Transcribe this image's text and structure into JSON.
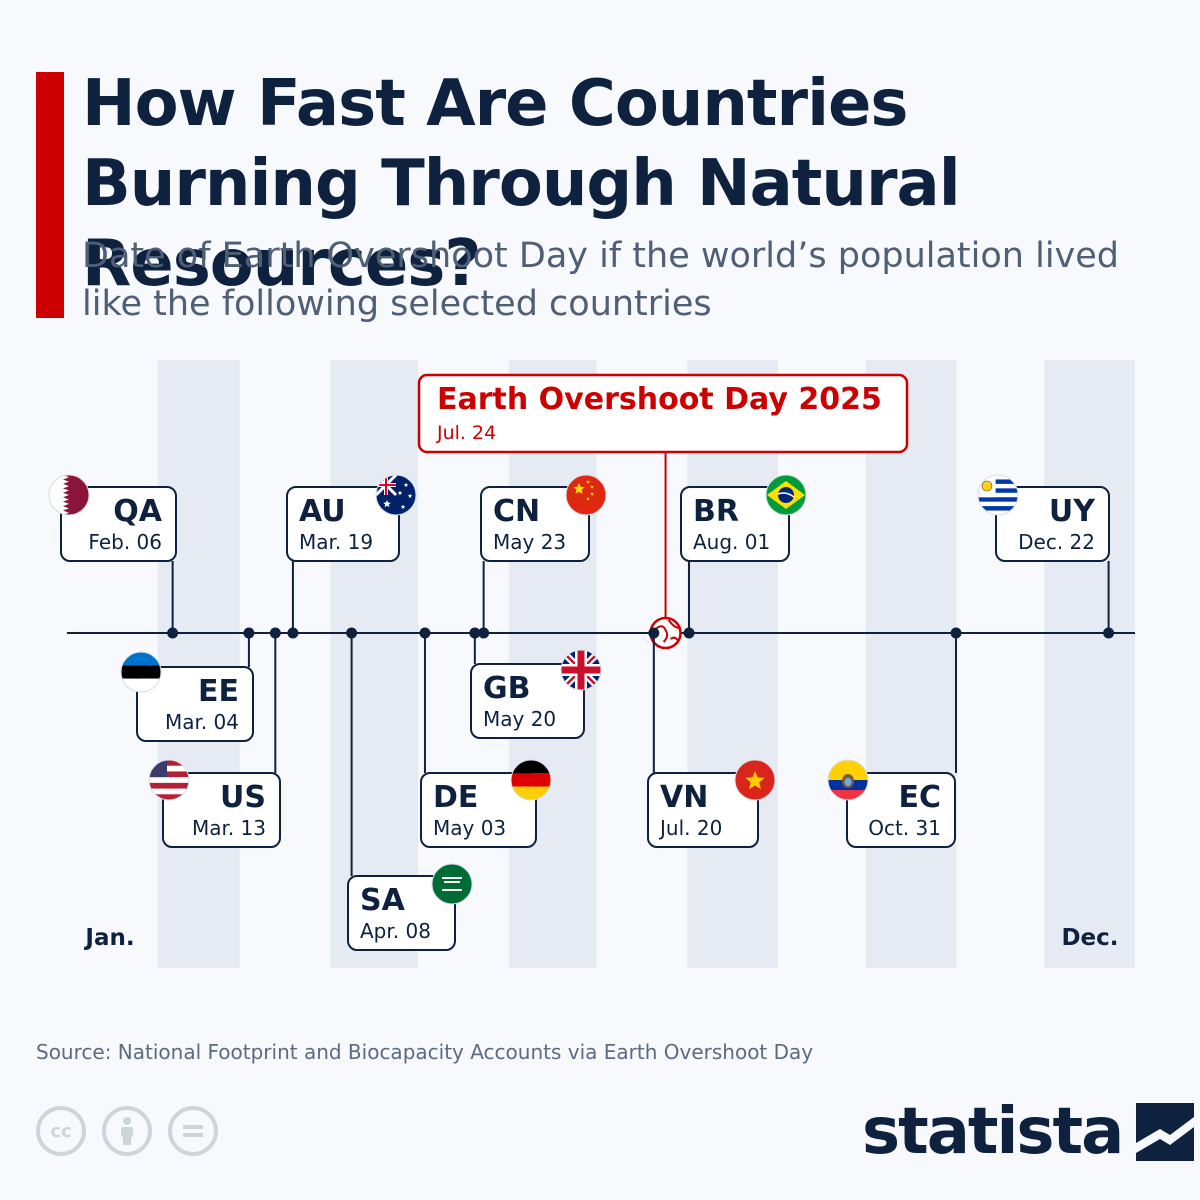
{
  "header": {
    "title": "How Fast Are Countries Burning Through Natural Resources?",
    "subtitle": "Date of Earth Overshoot Day if the world’s population lived like the following selected countries"
  },
  "chart_data": {
    "type": "timeline",
    "axis": {
      "start_label": "Jan.",
      "end_label": "Dec.",
      "start": "01-01",
      "end": "12-31",
      "alternating_month_bands": true
    },
    "highlight": {
      "label": "Earth Overshoot Day 2025",
      "date_label": "Jul. 24",
      "date": "07-24",
      "color": "#cc0000"
    },
    "points": [
      {
        "code": "QA",
        "date_label": "Feb. 06",
        "date": "02-06",
        "flag": "qatar-flag",
        "side": "above"
      },
      {
        "code": "EE",
        "date_label": "Mar. 04",
        "date": "03-04",
        "flag": "estonia-flag",
        "side": "below"
      },
      {
        "code": "US",
        "date_label": "Mar. 13",
        "date": "03-13",
        "flag": "usa-flag",
        "side": "below"
      },
      {
        "code": "AU",
        "date_label": "Mar. 19",
        "date": "03-19",
        "flag": "australia-flag",
        "side": "above"
      },
      {
        "code": "SA",
        "date_label": "Apr. 08",
        "date": "04-08",
        "flag": "saudi-arabia-flag",
        "side": "below"
      },
      {
        "code": "DE",
        "date_label": "May 03",
        "date": "05-03",
        "flag": "germany-flag",
        "side": "below"
      },
      {
        "code": "GB",
        "date_label": "May 20",
        "date": "05-20",
        "flag": "uk-flag",
        "side": "below"
      },
      {
        "code": "CN",
        "date_label": "May 23",
        "date": "05-23",
        "flag": "china-flag",
        "side": "above"
      },
      {
        "code": "VN",
        "date_label": "Jul. 20",
        "date": "07-20",
        "flag": "vietnam-flag",
        "side": "below"
      },
      {
        "code": "BR",
        "date_label": "Aug. 01",
        "date": "08-01",
        "flag": "brazil-flag",
        "side": "above"
      },
      {
        "code": "EC",
        "date_label": "Oct. 31",
        "date": "10-31",
        "flag": "ecuador-flag",
        "side": "below"
      },
      {
        "code": "UY",
        "date_label": "Dec. 22",
        "date": "12-22",
        "flag": "uruguay-flag",
        "side": "above"
      }
    ]
  },
  "footer": {
    "source": "Source: National Footprint and Biocapacity Accounts via Earth Overshoot Day",
    "brand": "statista",
    "license_icons": [
      "cc-icon",
      "attribution-icon",
      "no-derivatives-icon"
    ]
  },
  "colors": {
    "accent": "#cc0000",
    "navy": "#0e2240",
    "band": "#e6ebf3"
  }
}
